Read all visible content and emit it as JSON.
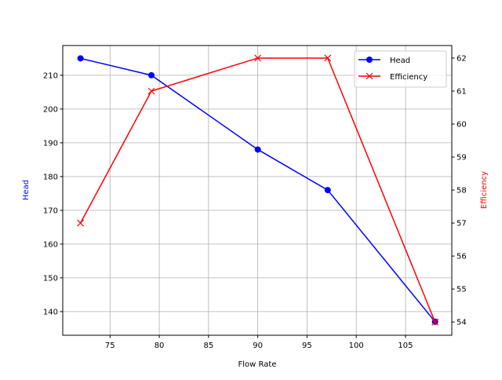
{
  "chart_data": {
    "type": "line",
    "title": "",
    "xlabel": "Flow Rate",
    "ylabel": "Head",
    "y2label": "Efficiency",
    "x": [
      72,
      79.2,
      90,
      97.1,
      108
    ],
    "xlim": [
      70.2,
      109.7
    ],
    "ylim": [
      133,
      218.8
    ],
    "y2lim": [
      53.6,
      62.38
    ],
    "xticks": [
      75,
      80,
      85,
      90,
      95,
      100,
      105
    ],
    "yticks": [
      140,
      150,
      160,
      170,
      180,
      190,
      200,
      210
    ],
    "y2ticks": [
      54,
      55,
      56,
      57,
      58,
      59,
      60,
      61,
      62
    ],
    "grid": true,
    "legend_position": "top-right",
    "series": [
      {
        "name": "Head",
        "axis": "left",
        "color": "#0000ff",
        "marker": "circle",
        "values": [
          215,
          210,
          188,
          176,
          137
        ]
      },
      {
        "name": "Efficiency",
        "axis": "right",
        "color": "#ff0000",
        "marker": "x",
        "values": [
          57,
          61,
          62,
          62,
          54
        ]
      }
    ]
  }
}
